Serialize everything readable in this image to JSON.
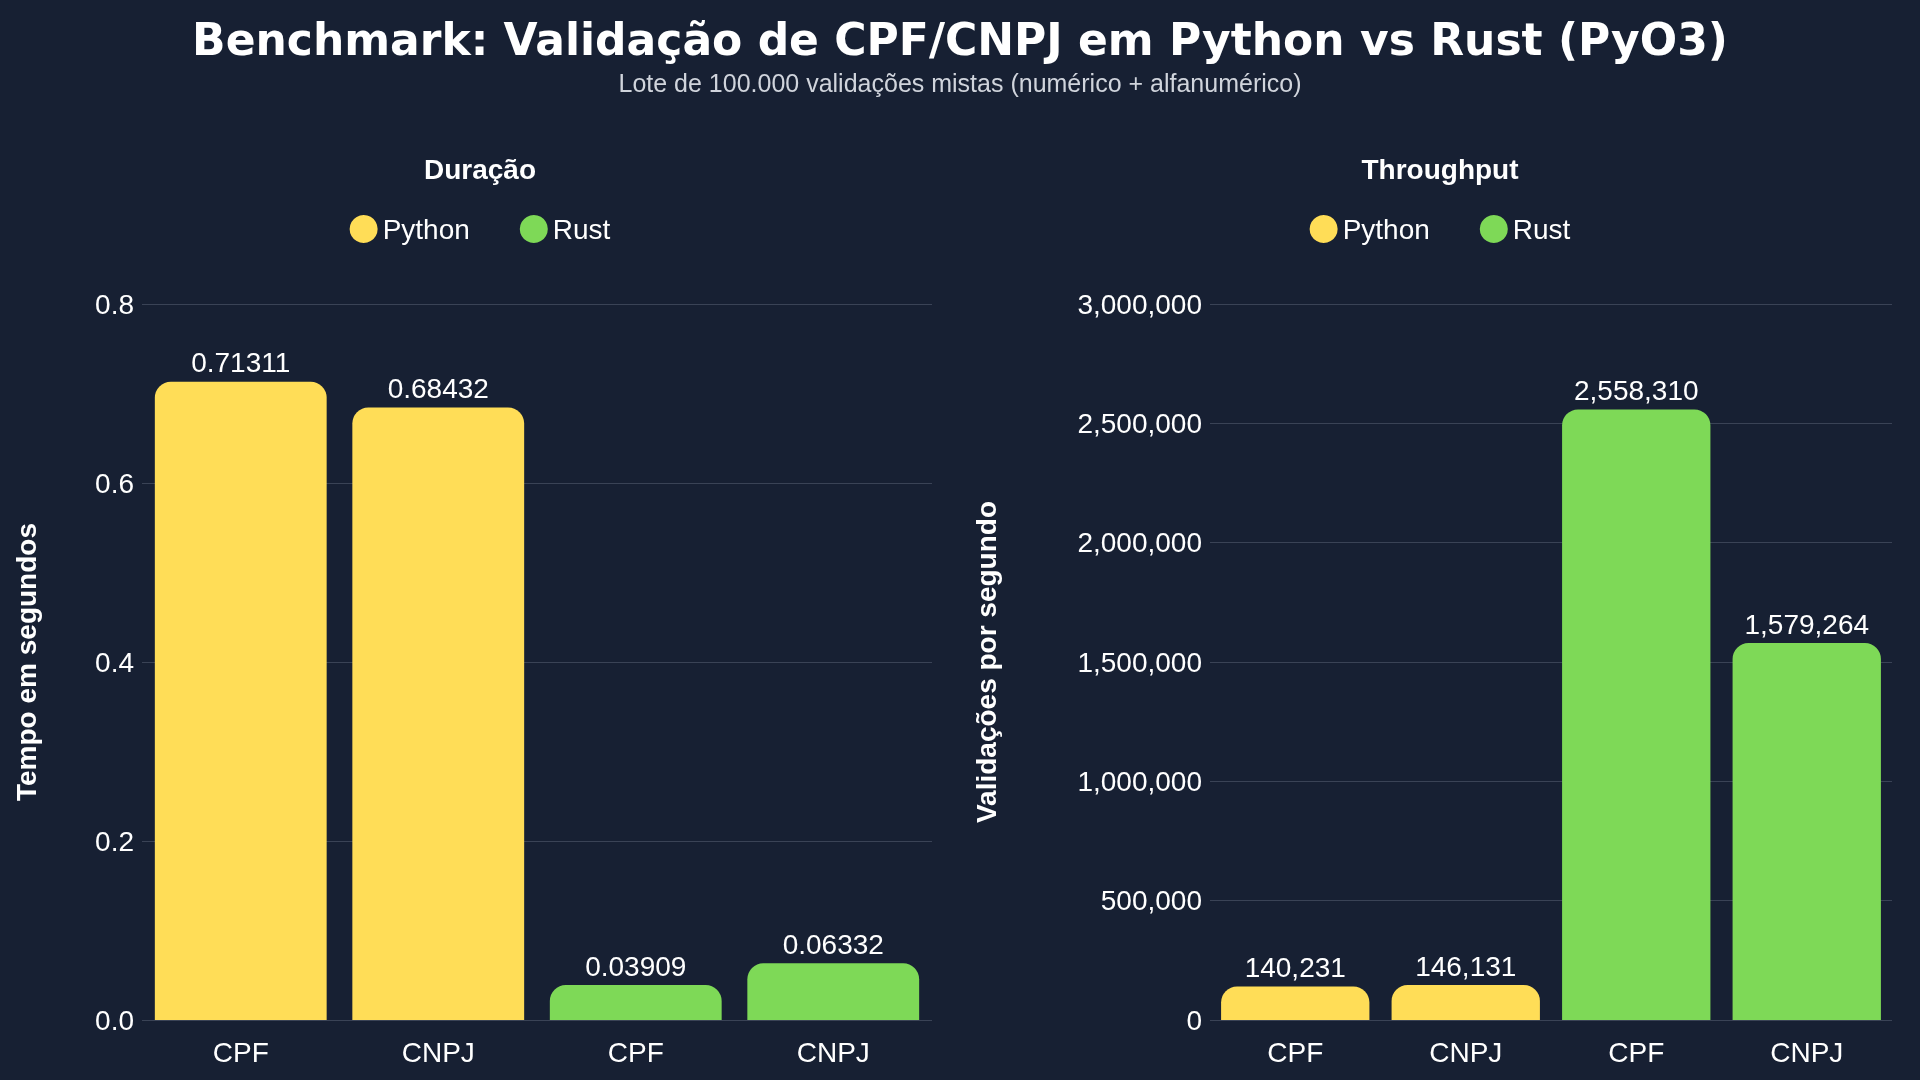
{
  "chart_data": [
    {
      "type": "other",
      "title": "Benchmark: Validação de CPF/CNPJ em Python vs Rust (PyO3)",
      "subtitle": "Lote de 100.000 validações mistas (numérico + alfanumérico)"
    },
    {
      "type": "bar",
      "title": "Duração",
      "ylabel": "Tempo em segundos",
      "categories": [
        "CPF",
        "CNPJ",
        "CPF",
        "CNPJ"
      ],
      "stacked": true,
      "series": [
        {
          "name": "Python",
          "color": "#ffdd57",
          "values": [
            0.71311,
            0.68432,
            null,
            null
          ]
        },
        {
          "name": "Rust",
          "color": "#7ed957",
          "values": [
            null,
            null,
            0.03909,
            0.06332
          ]
        }
      ],
      "ylim": [
        0,
        0.8
      ],
      "yticks": [
        {
          "value": 0,
          "label": "0.0"
        },
        {
          "value": 0.2,
          "label": "0.2"
        },
        {
          "value": 0.4,
          "label": "0.4"
        },
        {
          "value": 0.6,
          "label": "0.6"
        },
        {
          "value": 0.8,
          "label": "0.8"
        }
      ],
      "grid": "y",
      "legend": "top",
      "data_labels": true
    },
    {
      "type": "bar",
      "title": "Throughput",
      "ylabel": "Validações por segundo",
      "categories": [
        "CPF",
        "CNPJ",
        "CPF",
        "CNPJ"
      ],
      "stacked": true,
      "series": [
        {
          "name": "Python",
          "color": "#ffdd57",
          "values": [
            140231,
            146131,
            null,
            null
          ],
          "value_labels": [
            "140,231",
            "146,131",
            null,
            null
          ]
        },
        {
          "name": "Rust",
          "color": "#7ed957",
          "values": [
            null,
            null,
            2558310,
            1579264
          ],
          "value_labels": [
            null,
            null,
            "2,558,310",
            "1,579,264"
          ]
        }
      ],
      "ylim": [
        0,
        3000000
      ],
      "yticks": [
        {
          "value": 0,
          "label": "0"
        },
        {
          "value": 500000,
          "label": "500,000"
        },
        {
          "value": 1000000,
          "label": "1,000,000"
        },
        {
          "value": 1500000,
          "label": "1,500,000"
        },
        {
          "value": 2000000,
          "label": "2,000,000"
        },
        {
          "value": 2500000,
          "label": "2,500,000"
        },
        {
          "value": 3000000,
          "label": "3,000,000"
        }
      ],
      "grid": "y",
      "legend": "top"
    }
  ]
}
